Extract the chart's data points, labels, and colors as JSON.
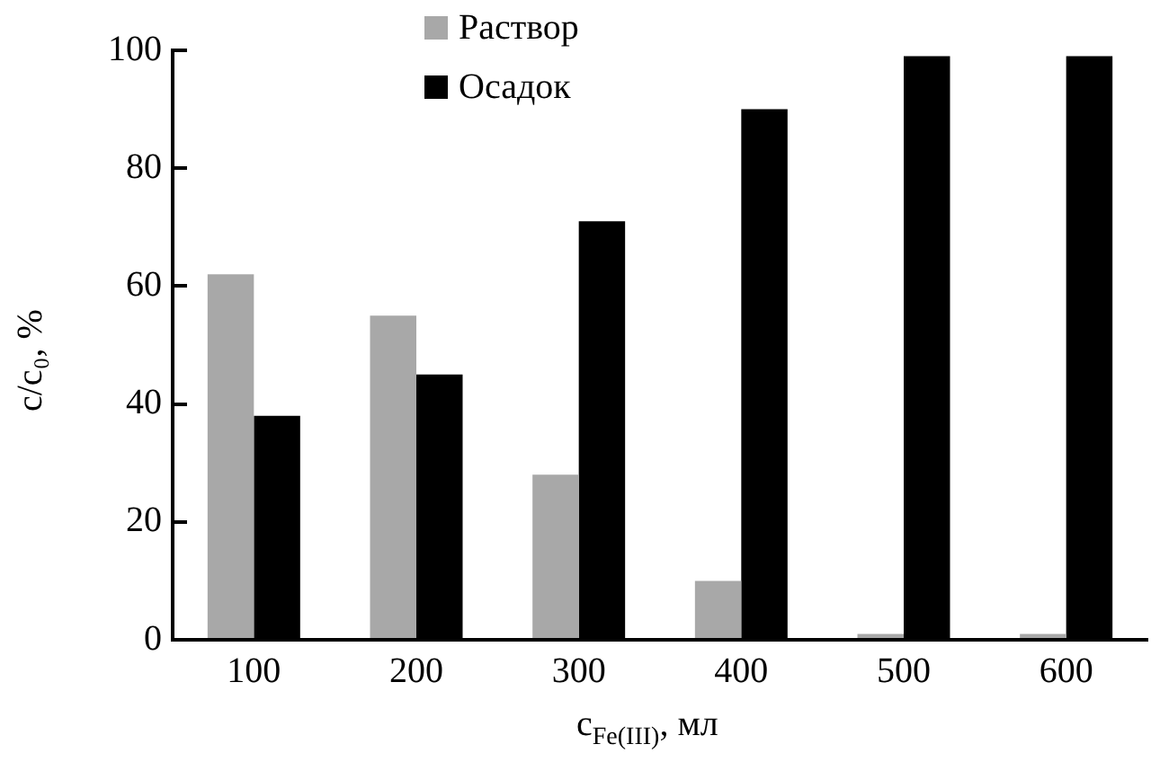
{
  "chart_data": {
    "type": "bar",
    "xlabel": "c$_{Fe(III)}$, мл",
    "ylabel": "c/c₀, %",
    "categories": [
      "100",
      "200",
      "300",
      "400",
      "500",
      "600"
    ],
    "series": [
      {
        "name": "Раствор",
        "color": "#a8a8a8",
        "values": [
          62,
          55,
          28,
          10,
          1,
          1
        ]
      },
      {
        "name": "Осадок",
        "color": "#000000",
        "values": [
          38,
          45,
          71,
          90,
          99,
          99
        ]
      }
    ],
    "ylim": [
      0,
      100
    ],
    "yticks": [
      0,
      20,
      40,
      60,
      80,
      100
    ],
    "grid": false,
    "legend": "top"
  }
}
